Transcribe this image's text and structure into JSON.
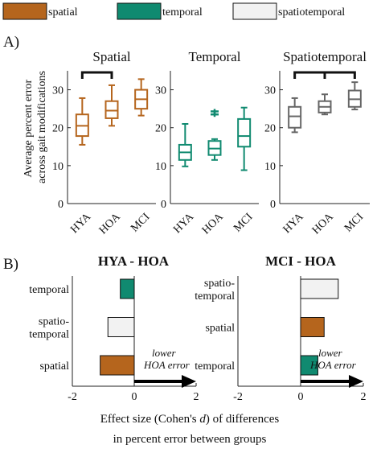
{
  "colors": {
    "spatial": "#b5651d",
    "temporal": "#108a70",
    "spatiotemporal": "#f2f2f2",
    "spatiotemporal_line": "#666666"
  },
  "legend": [
    {
      "key": "spatial",
      "label": "spatial"
    },
    {
      "key": "temporal",
      "label": "temporal"
    },
    {
      "key": "spatiotemporal",
      "label": "spatiotemporal"
    }
  ],
  "section_labels": {
    "a": "A)",
    "b": "B)"
  },
  "panel_a": {
    "ylabel_lines": [
      "Average percent error",
      "across gait modifications"
    ]
  },
  "panel_b": {
    "xlabel_parts": {
      "line1_pre": "Effect size (Cohen's ",
      "line1_italic": "d",
      "line1_post": ") of differences",
      "line2": "in percent error between groups"
    },
    "arrow_note_lines": [
      "lower",
      "HOA error"
    ]
  },
  "chart_data": [
    {
      "type": "box",
      "title": "Spatial",
      "color_key": "spatial",
      "categories": [
        "HYA",
        "HOA",
        "MCI"
      ],
      "ylim": [
        0,
        35
      ],
      "yticks": [
        "0",
        "10",
        "20",
        "30"
      ],
      "boxes": [
        {
          "min": 15.5,
          "q1": 17.8,
          "median": 20.5,
          "q3": 23.5,
          "max": 27.8,
          "outliers": []
        },
        {
          "min": 20.5,
          "q1": 22.5,
          "median": 24.5,
          "q3": 27.0,
          "max": 31.2,
          "outliers": []
        },
        {
          "min": 23.2,
          "q1": 25.0,
          "median": 27.5,
          "q3": 30.0,
          "max": 32.8,
          "outliers": []
        }
      ],
      "significance": [
        [
          0,
          1
        ]
      ]
    },
    {
      "type": "box",
      "title": "Temporal",
      "color_key": "temporal",
      "categories": [
        "HYA",
        "HOA",
        "MCI"
      ],
      "ylim": [
        0,
        35
      ],
      "yticks": [
        "0",
        "10",
        "20",
        "30"
      ],
      "boxes": [
        {
          "min": 9.8,
          "q1": 11.5,
          "median": 13.5,
          "q3": 15.5,
          "max": 21.0,
          "outliers": []
        },
        {
          "min": 11.5,
          "q1": 12.8,
          "median": 14.5,
          "q3": 16.5,
          "max": 17.0,
          "outliers": [
            23.5,
            24.3
          ]
        },
        {
          "min": 8.8,
          "q1": 15.0,
          "median": 17.8,
          "q3": 22.3,
          "max": 25.3,
          "outliers": []
        }
      ],
      "significance": []
    },
    {
      "type": "box",
      "title": "Spatiotemporal",
      "color_key": "spatiotemporal",
      "categories": [
        "HYA",
        "HOA",
        "MCI"
      ],
      "ylim": [
        0,
        35
      ],
      "yticks": [
        "0",
        "10",
        "20",
        "30"
      ],
      "boxes": [
        {
          "min": 18.8,
          "q1": 20.0,
          "median": 23.0,
          "q3": 25.5,
          "max": 27.8,
          "outliers": []
        },
        {
          "min": 23.5,
          "q1": 24.0,
          "median": 25.5,
          "q3": 27.0,
          "max": 28.8,
          "outliers": []
        },
        {
          "min": 24.8,
          "q1": 25.5,
          "median": 27.5,
          "q3": 29.8,
          "max": 32.0,
          "outliers": []
        }
      ],
      "significance": [
        [
          0,
          1
        ],
        [
          1,
          2
        ]
      ]
    },
    {
      "type": "bar",
      "orientation": "horizontal",
      "title": "HYA - HOA",
      "xlim": [
        -2,
        2
      ],
      "xticks": [
        "-2",
        "0",
        "2"
      ],
      "categories": [
        "temporal",
        "spatio-temporal",
        "spatial"
      ],
      "category_lines": [
        [
          "temporal"
        ],
        [
          "spatio-",
          "temporal"
        ],
        [
          "spatial"
        ]
      ],
      "color_keys": [
        "temporal",
        "spatiotemporal",
        "spatial"
      ],
      "values": [
        -0.45,
        -0.85,
        -1.1
      ]
    },
    {
      "type": "bar",
      "orientation": "horizontal",
      "title": "MCI - HOA",
      "xlim": [
        -2,
        2
      ],
      "xticks": [
        "-2",
        "0",
        "2"
      ],
      "categories": [
        "spatio-temporal",
        "spatial",
        "temporal"
      ],
      "category_lines": [
        [
          "spatio-",
          "temporal"
        ],
        [
          "spatial"
        ],
        [
          "temporal"
        ]
      ],
      "color_keys": [
        "spatiotemporal",
        "spatial",
        "temporal"
      ],
      "values": [
        1.2,
        0.75,
        0.55
      ]
    }
  ]
}
